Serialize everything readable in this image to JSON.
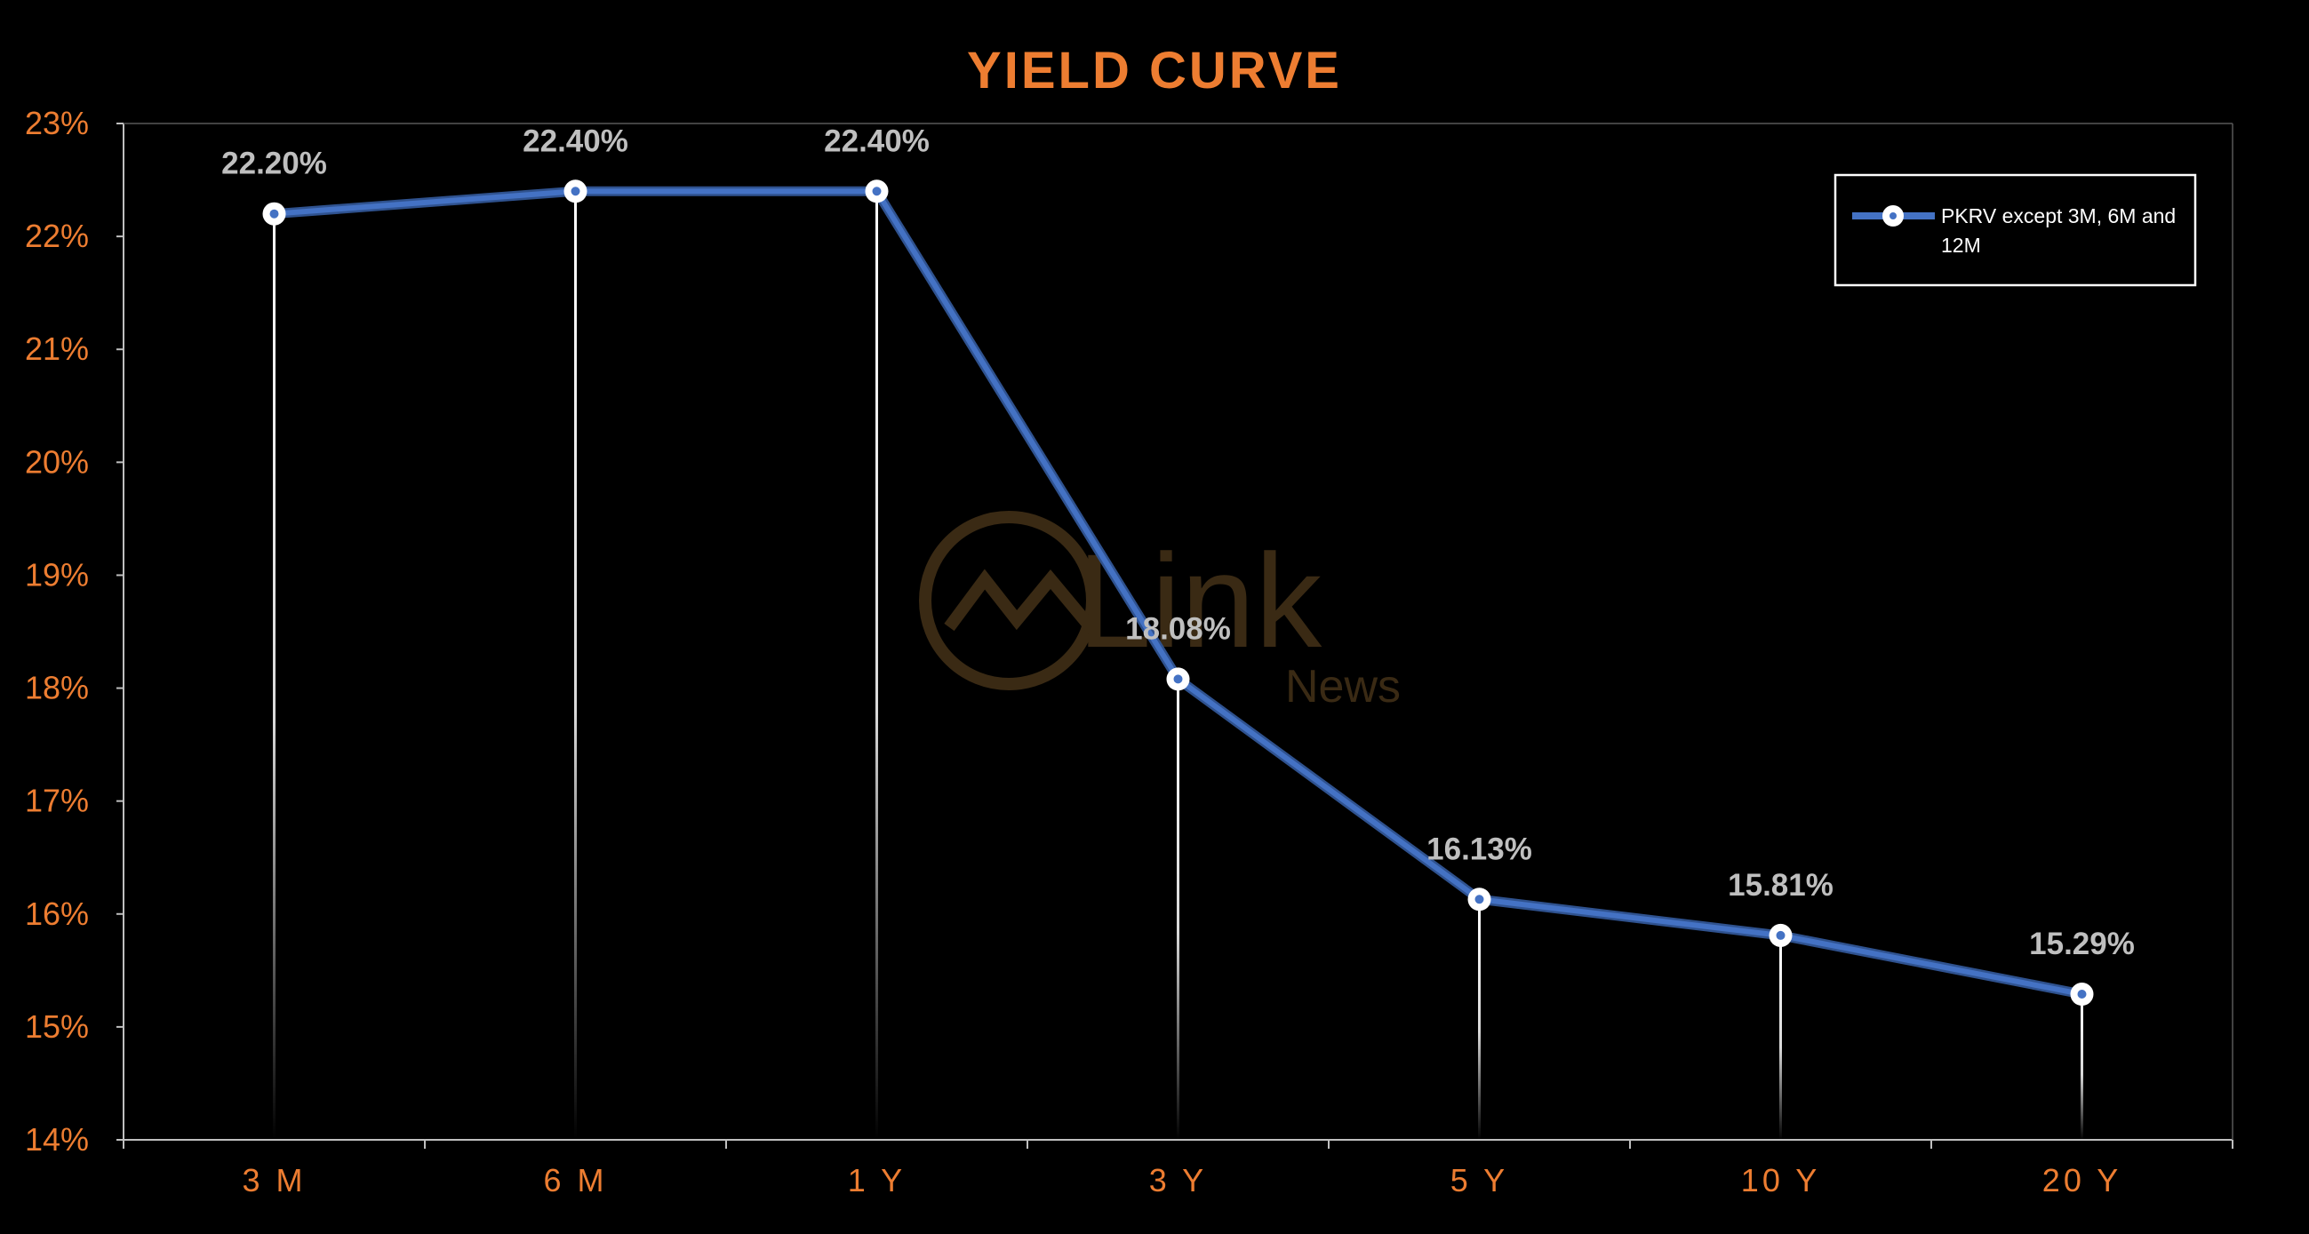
{
  "colors": {
    "background": "#000000",
    "title": "#ED7D31",
    "axis_tick_labels": "#ED7D31",
    "data_labels": "#BFBFBF",
    "series_line": "#4472C4",
    "drop_lines": "#FFFFFF",
    "axis_lines": "#BFBFBF",
    "legend_border": "#FFFFFF",
    "legend_text": "#FFFFFF",
    "watermark": "#3A2A14"
  },
  "watermark": {
    "brand": "Link",
    "sub": "News"
  },
  "chart_data": {
    "type": "line",
    "title": "YIELD CURVE",
    "categories": [
      "3 M",
      "6 M",
      "1 Y",
      "3 Y",
      "5 Y",
      "10 Y",
      "20 Y"
    ],
    "series": [
      {
        "name": "PKRV except 3M, 6M and 12M",
        "values": [
          22.2,
          22.4,
          22.4,
          18.08,
          16.13,
          15.81,
          15.29
        ],
        "data_labels": [
          "22.20%",
          "22.40%",
          "22.40%",
          "18.08%",
          "16.13%",
          "15.81%",
          "15.29%"
        ],
        "marker": "circle",
        "drop_lines": true
      }
    ],
    "legend": {
      "position": "top-right",
      "lines": [
        "PKRV except 3M, 6M and",
        "12M"
      ]
    },
    "ylim": [
      14,
      23
    ],
    "y_ticks": [
      "14%",
      "15%",
      "16%",
      "17%",
      "18%",
      "19%",
      "20%",
      "21%",
      "22%",
      "23%"
    ],
    "grid": false,
    "xlabel": "",
    "ylabel": ""
  }
}
